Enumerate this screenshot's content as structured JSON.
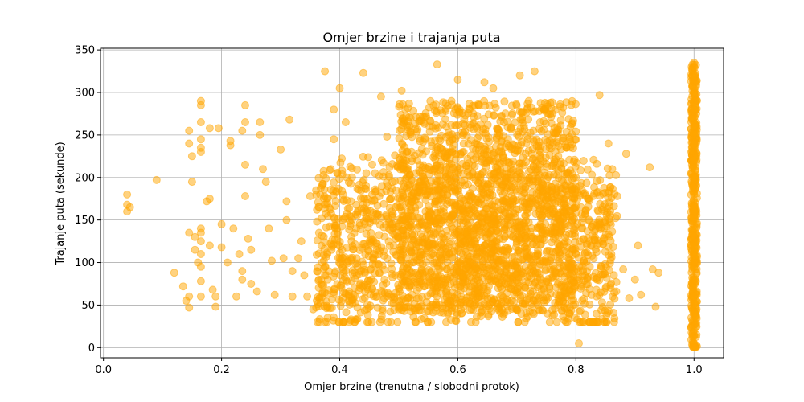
{
  "chart_data": {
    "type": "scatter",
    "title": "Omjer brzine i trajanja puta",
    "xlabel": "Omjer brzine (trenutna / slobodni protok)",
    "ylabel": "Trajanje puta (sekunde)",
    "xlim": [
      -0.005,
      1.05
    ],
    "ylim": [
      -12,
      352
    ],
    "xticks": [
      0.0,
      0.2,
      0.4,
      0.6,
      0.8,
      1.0
    ],
    "xtick_labels": [
      "0.0",
      "0.2",
      "0.4",
      "0.6",
      "0.8",
      "1.0"
    ],
    "yticks": [
      0,
      50,
      100,
      150,
      200,
      250,
      300,
      350
    ],
    "ytick_labels": [
      "0",
      "50",
      "100",
      "150",
      "200",
      "250",
      "300",
      "350"
    ],
    "grid": true,
    "marker_color": "#FFA500",
    "marker_alpha": 0.5,
    "series": [
      {
        "points": [
          [
            0.04,
            180
          ],
          [
            0.04,
            168
          ],
          [
            0.04,
            160
          ],
          [
            0.045,
            165
          ],
          [
            0.09,
            197
          ],
          [
            0.12,
            88
          ],
          [
            0.135,
            72
          ],
          [
            0.14,
            55
          ],
          [
            0.145,
            47
          ],
          [
            0.145,
            60
          ],
          [
            0.145,
            135
          ],
          [
            0.145,
            240
          ],
          [
            0.145,
            255
          ],
          [
            0.15,
            225
          ],
          [
            0.15,
            195
          ],
          [
            0.155,
            130
          ],
          [
            0.155,
            115
          ],
          [
            0.16,
            100
          ],
          [
            0.165,
            290
          ],
          [
            0.165,
            285
          ],
          [
            0.165,
            265
          ],
          [
            0.165,
            245
          ],
          [
            0.165,
            235
          ],
          [
            0.165,
            230
          ],
          [
            0.165,
            140
          ],
          [
            0.165,
            135
          ],
          [
            0.165,
            125
          ],
          [
            0.165,
            110
          ],
          [
            0.165,
            95
          ],
          [
            0.165,
            78
          ],
          [
            0.165,
            60
          ],
          [
            0.175,
            172
          ],
          [
            0.18,
            175
          ],
          [
            0.18,
            258
          ],
          [
            0.18,
            120
          ],
          [
            0.185,
            68
          ],
          [
            0.19,
            60
          ],
          [
            0.19,
            48
          ],
          [
            0.195,
            258
          ],
          [
            0.2,
            145
          ],
          [
            0.2,
            118
          ],
          [
            0.21,
            100
          ],
          [
            0.215,
            243
          ],
          [
            0.215,
            238
          ],
          [
            0.22,
            140
          ],
          [
            0.225,
            60
          ],
          [
            0.23,
            110
          ],
          [
            0.235,
            90
          ],
          [
            0.235,
            80
          ],
          [
            0.235,
            255
          ],
          [
            0.24,
            265
          ],
          [
            0.24,
            285
          ],
          [
            0.24,
            215
          ],
          [
            0.24,
            178
          ],
          [
            0.245,
            128
          ],
          [
            0.25,
            115
          ],
          [
            0.25,
            75
          ],
          [
            0.26,
            66
          ],
          [
            0.265,
            265
          ],
          [
            0.265,
            250
          ],
          [
            0.27,
            210
          ],
          [
            0.275,
            195
          ],
          [
            0.28,
            140
          ],
          [
            0.285,
            102
          ],
          [
            0.29,
            62
          ],
          [
            0.3,
            233
          ],
          [
            0.305,
            105
          ],
          [
            0.31,
            150
          ],
          [
            0.31,
            172
          ],
          [
            0.315,
            268
          ],
          [
            0.32,
            60
          ],
          [
            0.32,
            90
          ],
          [
            0.33,
            105
          ],
          [
            0.335,
            125
          ],
          [
            0.34,
            85
          ],
          [
            0.345,
            60
          ],
          [
            0.35,
            178
          ],
          [
            0.355,
            45
          ],
          [
            0.36,
            185
          ],
          [
            0.365,
            135
          ],
          [
            0.37,
            100
          ],
          [
            0.375,
            325
          ],
          [
            0.38,
            80
          ],
          [
            0.385,
            210
          ],
          [
            0.39,
            280
          ],
          [
            0.39,
            245
          ],
          [
            0.4,
            305
          ],
          [
            0.405,
            150
          ],
          [
            0.41,
            265
          ],
          [
            0.415,
            55
          ],
          [
            0.42,
            125
          ],
          [
            0.43,
            95
          ],
          [
            0.44,
            323
          ],
          [
            0.445,
            205
          ],
          [
            0.455,
            180
          ],
          [
            0.46,
            65
          ],
          [
            0.47,
            295
          ],
          [
            0.475,
            108
          ],
          [
            0.48,
            248
          ],
          [
            0.49,
            145
          ],
          [
            0.5,
            70
          ],
          [
            0.505,
            302
          ],
          [
            0.51,
            220
          ],
          [
            0.52,
            270
          ],
          [
            0.53,
            118
          ],
          [
            0.54,
            88
          ],
          [
            0.545,
            195
          ],
          [
            0.55,
            155
          ],
          [
            0.56,
            135
          ],
          [
            0.565,
            333
          ],
          [
            0.57,
            175
          ],
          [
            0.58,
            205
          ],
          [
            0.59,
            60
          ],
          [
            0.6,
            315
          ],
          [
            0.605,
            130
          ],
          [
            0.61,
            240
          ],
          [
            0.62,
            280
          ],
          [
            0.63,
            95
          ],
          [
            0.64,
            175
          ],
          [
            0.645,
            312
          ],
          [
            0.65,
            150
          ],
          [
            0.655,
            220
          ],
          [
            0.66,
            305
          ],
          [
            0.67,
            75
          ],
          [
            0.68,
            195
          ],
          [
            0.69,
            258
          ],
          [
            0.7,
            125
          ],
          [
            0.705,
            320
          ],
          [
            0.71,
            165
          ],
          [
            0.72,
            290
          ],
          [
            0.725,
            100
          ],
          [
            0.73,
            325
          ],
          [
            0.735,
            210
          ],
          [
            0.74,
            145
          ],
          [
            0.75,
            185
          ],
          [
            0.755,
            72
          ],
          [
            0.76,
            275
          ],
          [
            0.765,
            130
          ],
          [
            0.77,
            225
          ],
          [
            0.78,
            160
          ],
          [
            0.785,
            95
          ],
          [
            0.79,
            245
          ],
          [
            0.795,
            115
          ],
          [
            0.8,
            200
          ],
          [
            0.805,
            5
          ],
          [
            0.81,
            140
          ],
          [
            0.815,
            85
          ],
          [
            0.82,
            175
          ],
          [
            0.83,
            105
          ],
          [
            0.835,
            60
          ],
          [
            0.84,
            297
          ],
          [
            0.845,
            125
          ],
          [
            0.85,
            150
          ],
          [
            0.855,
            240
          ],
          [
            0.86,
            110
          ],
          [
            0.865,
            65
          ],
          [
            0.87,
            178
          ],
          [
            0.88,
            92
          ],
          [
            0.885,
            228
          ],
          [
            0.89,
            58
          ],
          [
            0.9,
            80
          ],
          [
            0.905,
            120
          ],
          [
            0.91,
            62
          ],
          [
            0.925,
            212
          ],
          [
            0.93,
            92
          ],
          [
            0.935,
            48
          ],
          [
            0.94,
            88
          ],
          [
            1.0,
            335
          ],
          [
            1.0,
            330
          ],
          [
            1.0,
            320
          ],
          [
            1.0,
            300
          ],
          [
            1.0,
            280
          ],
          [
            1.0,
            260
          ],
          [
            1.0,
            240
          ],
          [
            1.0,
            220
          ],
          [
            1.0,
            200
          ],
          [
            1.0,
            180
          ],
          [
            1.0,
            160
          ],
          [
            1.0,
            140
          ],
          [
            1.0,
            120
          ],
          [
            1.0,
            100
          ],
          [
            1.0,
            80
          ],
          [
            1.0,
            60
          ],
          [
            1.0,
            40
          ],
          [
            1.0,
            20
          ],
          [
            1.0,
            5
          ]
        ],
        "dense_regions": [
          {
            "x_range": [
              0.36,
              0.87
            ],
            "y_range": [
              30,
              240
            ]
          },
          {
            "x_range": [
              0.5,
              0.8
            ],
            "y_range": [
              40,
              290
            ]
          },
          {
            "x_range": [
              0.995,
              1.005
            ],
            "y_range": [
              0,
              335
            ]
          }
        ]
      }
    ]
  }
}
